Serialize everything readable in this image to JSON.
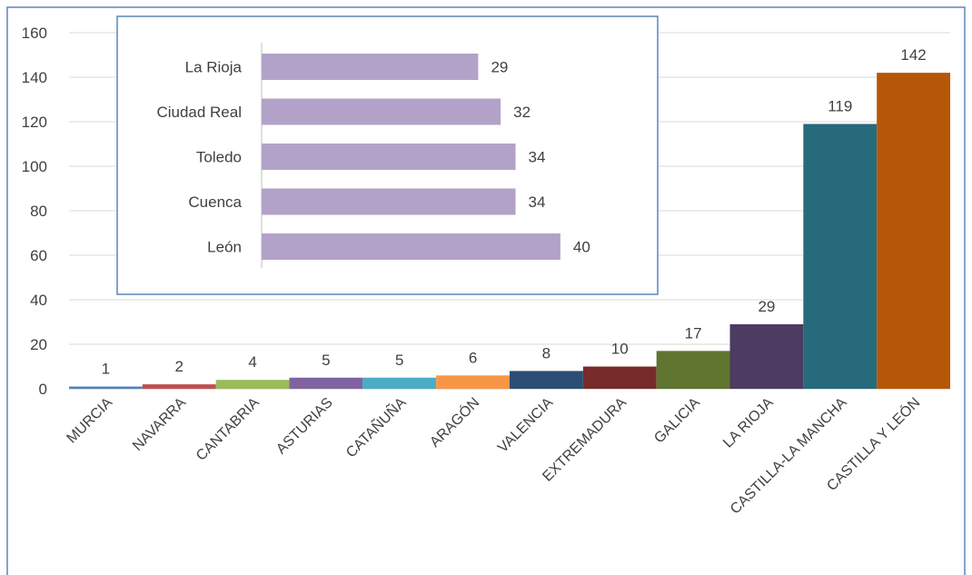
{
  "colors": {
    "border": "#5b86b8",
    "grid": "#d9d9d9",
    "axis": "#bfbfbf",
    "text": "#404040"
  },
  "chart_data": [
    {
      "type": "bar",
      "orientation": "vertical",
      "categories": [
        "MURCIA",
        "NAVARRA",
        "CANTABRIA",
        "ASTURIAS",
        "CATAÑUÑA",
        "ARAGÓN",
        "VALENCIA",
        "EXTREMADURA",
        "GALICIA",
        "LA RIOJA",
        "CASTILLA-LA MANCHA",
        "CASTILLA Y LEÓN"
      ],
      "values": [
        1,
        2,
        4,
        5,
        5,
        6,
        8,
        10,
        17,
        29,
        119,
        142
      ],
      "colors": [
        "#4f81bd",
        "#c0504d",
        "#9bbb59",
        "#8064a2",
        "#4bacc6",
        "#f79646",
        "#2c4d75",
        "#772c2a",
        "#5f7530",
        "#4d3b62",
        "#276a7c",
        "#b65708"
      ],
      "ylim": [
        0,
        160
      ],
      "yticks": [
        0,
        20,
        40,
        60,
        80,
        100,
        120,
        140,
        160
      ],
      "grid": true,
      "data_labels": true
    },
    {
      "type": "bar",
      "orientation": "horizontal",
      "categories": [
        "La Rioja",
        "Ciudad Real",
        "Toledo",
        "Cuenca",
        "León"
      ],
      "values": [
        29,
        32,
        34,
        34,
        40
      ],
      "color": "#b3a2c7",
      "xlim": [
        0,
        45
      ],
      "data_labels": true
    }
  ]
}
